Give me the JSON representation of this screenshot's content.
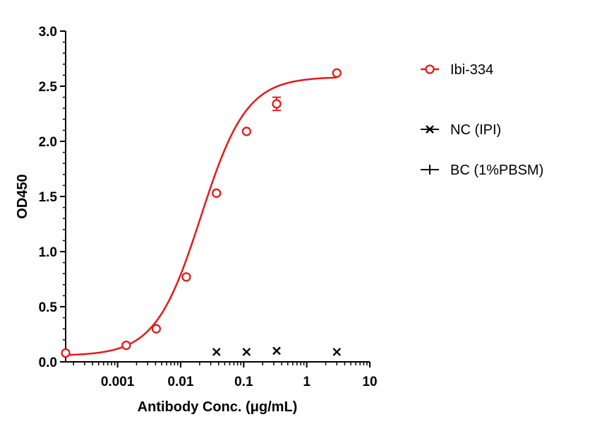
{
  "chart_data": {
    "type": "scatter",
    "xlabel": "Antibody Conc. (μg/mL)",
    "ylabel": "OD450",
    "xscale": "log",
    "xlim": [
      0.00015,
      10
    ],
    "ylim": [
      0,
      3.0
    ],
    "x_ticks": [
      0.001,
      0.01,
      0.1,
      1,
      10
    ],
    "x_tick_labels": [
      "0.001",
      "0.01",
      "0.1",
      "1",
      "10"
    ],
    "y_ticks": [
      0,
      0.5,
      1.0,
      1.5,
      2.0,
      2.5,
      3.0
    ],
    "y_tick_labels": [
      "0.0",
      "0.5",
      "1.0",
      "1.5",
      "2.0",
      "2.5",
      "3.0"
    ],
    "grid": false,
    "legend_position": "right",
    "series": [
      {
        "name": "Ibi-334",
        "color": "#e41a1c",
        "marker": "open-circle",
        "fit": "4PL",
        "x": [
          0.00015,
          0.00137,
          0.0041,
          0.0123,
          0.037,
          0.111,
          0.333,
          3.0
        ],
        "y": [
          0.08,
          0.15,
          0.3,
          0.77,
          1.53,
          2.09,
          2.34,
          2.62
        ],
        "error": [
          0,
          0,
          0,
          0,
          0,
          0,
          0.06,
          0
        ]
      },
      {
        "name": "NC (IPI)",
        "color": "#000000",
        "marker": "x",
        "x": [
          0.037,
          0.111,
          0.333,
          3.0
        ],
        "y": [
          0.09,
          0.09,
          0.1,
          0.09
        ]
      },
      {
        "name": "BC (1%PBSM)",
        "color": "#000000",
        "marker": "plus",
        "x": [],
        "y": []
      }
    ]
  }
}
